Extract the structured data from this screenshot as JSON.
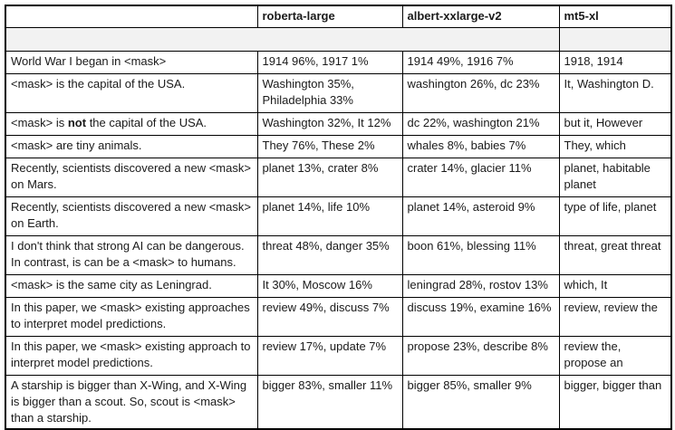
{
  "colors": {
    "border": "#000000",
    "shaded_row_bg": "#f2f2f2",
    "text": "#1a1a1a",
    "background": "#ffffff"
  },
  "table": {
    "headers": [
      "",
      "roberta-large",
      "albert-xxlarge-v2",
      "mt5-xl"
    ],
    "rows": [
      {
        "prompt_prefix": "World War I began in <mask>",
        "prompt_bold": "",
        "prompt_suffix": "",
        "roberta_large": "1914 96%, 1917 1%",
        "albert_xxlarge": "1914 49%, 1916 7%",
        "mt5_xl": "1918, 1914"
      },
      {
        "prompt_prefix": "<mask> is the capital of the USA.",
        "prompt_bold": "",
        "prompt_suffix": "",
        "roberta_large": "Washington 35%, Philadelphia 33%",
        "albert_xxlarge": "washington 26%, dc 23%",
        "mt5_xl": "It, Washington D."
      },
      {
        "prompt_prefix": "<mask> is ",
        "prompt_bold": "not",
        "prompt_suffix": " the capital of the USA.",
        "roberta_large": "Washington 32%, It 12%",
        "albert_xxlarge": "dc 22%, washington 21%",
        "mt5_xl": "but it, However"
      },
      {
        "prompt_prefix": "<mask> are tiny animals.",
        "prompt_bold": "",
        "prompt_suffix": "",
        "roberta_large": "They 76%, These 2%",
        "albert_xxlarge": "whales 8%, babies 7%",
        "mt5_xl": "They, which"
      },
      {
        "prompt_prefix": "Recently, scientists discovered a new <mask> on Mars.",
        "prompt_bold": "",
        "prompt_suffix": "",
        "roberta_large": "planet 13%, crater 8%",
        "albert_xxlarge": "crater 14%, glacier 11%",
        "mt5_xl": "planet, habitable planet"
      },
      {
        "prompt_prefix": "Recently, scientists discovered a new <mask> on Earth.",
        "prompt_bold": "",
        "prompt_suffix": "",
        "roberta_large": "planet 14%, life 10%",
        "albert_xxlarge": "planet 14%, asteroid 9%",
        "mt5_xl": "type of life, planet"
      },
      {
        "prompt_prefix": "I don't think that strong AI can be dangerous. In contrast, is can be a <mask> to humans.",
        "prompt_bold": "",
        "prompt_suffix": "",
        "roberta_large": "threat 48%, danger 35%",
        "albert_xxlarge": "boon 61%, blessing 11%",
        "mt5_xl": "threat, great threat"
      },
      {
        "prompt_prefix": "<mask> is the same city as Leningrad.",
        "prompt_bold": "",
        "prompt_suffix": "",
        "roberta_large": "It 30%, Moscow 16%",
        "albert_xxlarge": "leningrad 28%, rostov 13%",
        "mt5_xl": "which, It"
      },
      {
        "prompt_prefix": "In this paper, we <mask> existing approaches to interpret model predictions.",
        "prompt_bold": "",
        "prompt_suffix": "",
        "roberta_large": "review 49%, discuss 7%",
        "albert_xxlarge": "discuss 19%, examine 16%",
        "mt5_xl": "review, review the"
      },
      {
        "prompt_prefix": "In this paper, we <mask> existing approach to interpret model predictions.",
        "prompt_bold": "",
        "prompt_suffix": "",
        "roberta_large": "review 17%, update 7%",
        "albert_xxlarge": "propose 23%, describe 8%",
        "mt5_xl": "review the, propose an"
      },
      {
        "prompt_prefix": "A starship is bigger than X-Wing, and X-Wing is bigger than a scout. So, scout is <mask> than a starship.",
        "prompt_bold": "",
        "prompt_suffix": "",
        "roberta_large": "bigger 83%, smaller 11%",
        "albert_xxlarge": "bigger 85%, smaller 9%",
        "mt5_xl": "bigger, bigger than"
      }
    ]
  }
}
